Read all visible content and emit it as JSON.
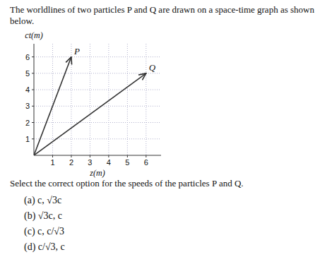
{
  "chart_data": {
    "type": "line",
    "title": "The worldlines of two particles P and Q are drawn on a space-time graph as shown below.",
    "xlabel": "z(m)",
    "ylabel": "ct(m)",
    "series": [
      {
        "name": "P",
        "color": "#333333",
        "x": [
          0,
          2
        ],
        "values": [
          0,
          6
        ]
      },
      {
        "name": "Q",
        "color": "#333333",
        "x": [
          0,
          6
        ],
        "values": [
          0,
          5
        ]
      }
    ],
    "xlim": [
      0,
      6.8
    ],
    "ylim": [
      0,
      6.8
    ],
    "xticks": [
      1,
      2,
      3,
      4,
      5,
      6
    ],
    "yticks": [
      1,
      2,
      3,
      4,
      5,
      6
    ],
    "grid": true,
    "annotations": [
      "Select the correct option for the speeds of the particles P and Q.",
      "(a)  c, √3c",
      "(b)  √3c, c",
      "(c)  c, c/√3",
      "(d)  c/√3, c"
    ]
  }
}
